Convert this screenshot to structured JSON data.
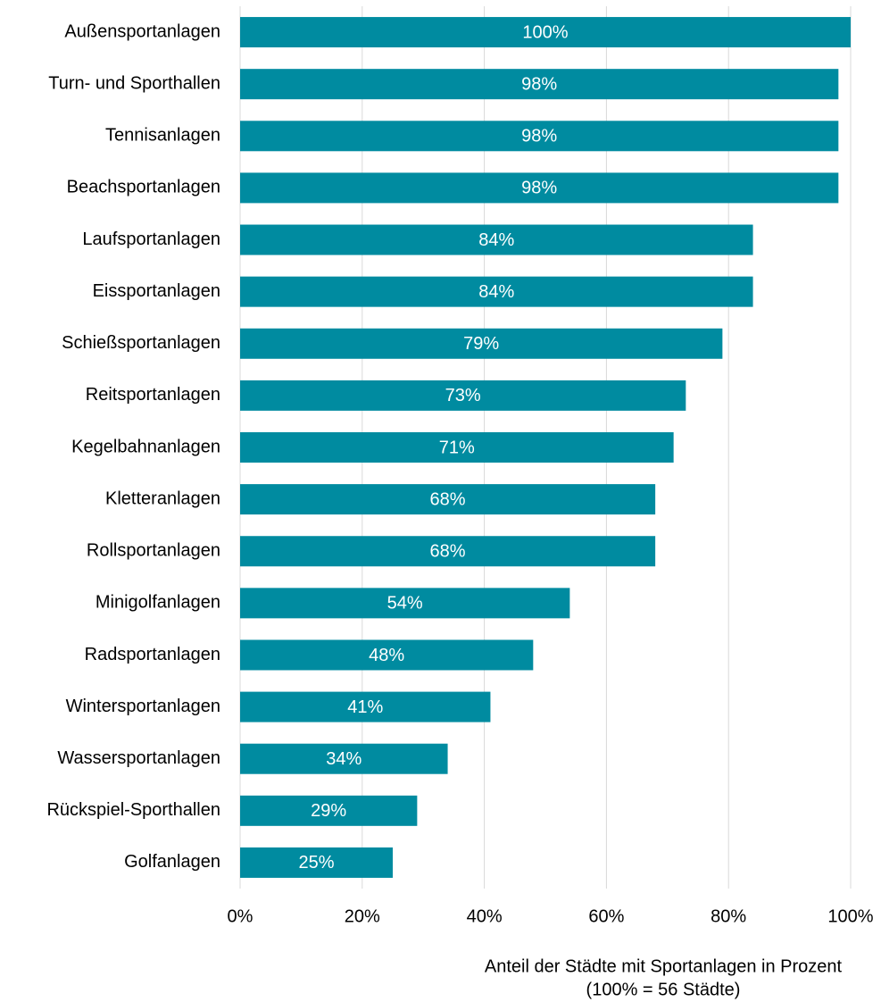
{
  "chart_data": {
    "type": "barh",
    "categories": [
      "Außensportanlagen",
      "Turn- und Sporthallen",
      "Tennisanlagen",
      "Beachsportanlagen",
      "Laufsportanlagen",
      "Eissportanlagen",
      "Schießsportanlagen",
      "Reitsportanlagen",
      "Kegelbahnanlagen",
      "Kletteranlagen",
      "Rollsportanlagen",
      "Minigolfanlagen",
      "Radsportanlagen",
      "Wintersportanlagen",
      "Wassersportanlagen",
      "Rückspiel-Sporthallen",
      "Golfanlagen"
    ],
    "values": [
      100,
      98,
      98,
      98,
      84,
      84,
      79,
      73,
      71,
      68,
      68,
      54,
      48,
      41,
      34,
      29,
      25
    ],
    "value_labels": [
      "100%",
      "98%",
      "98%",
      "98%",
      "84%",
      "84%",
      "79%",
      "73%",
      "71%",
      "68%",
      "68%",
      "54%",
      "48%",
      "41%",
      "34%",
      "29%",
      "25%"
    ],
    "color": "#008ba0",
    "xlim": [
      0,
      100
    ],
    "xticks": [
      {
        "value": 0,
        "label": "0%"
      },
      {
        "value": 20,
        "label": "20%"
      },
      {
        "value": 40,
        "label": "40%"
      },
      {
        "value": 60,
        "label": "60%"
      },
      {
        "value": 80,
        "label": "80%"
      },
      {
        "value": 100,
        "label": "100%"
      }
    ],
    "grid": true,
    "xlabel": [
      "Anteil der Städte mit Sportanlagen in Prozent",
      "(100% = 56 Städte)"
    ]
  }
}
